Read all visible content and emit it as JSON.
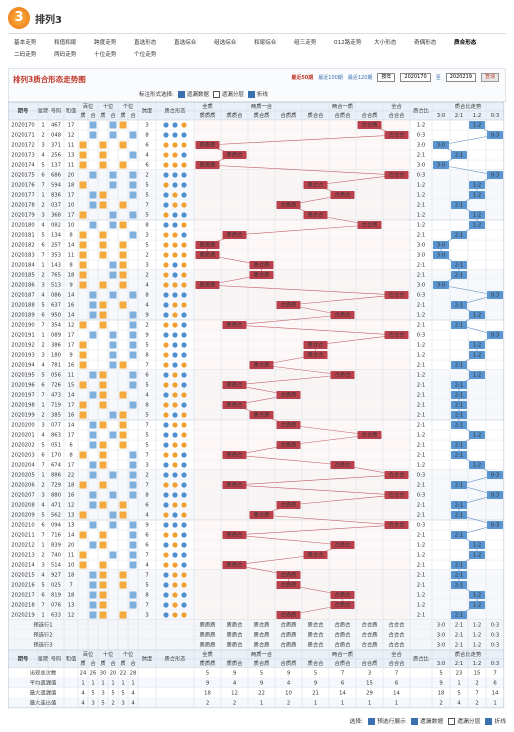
{
  "header": {
    "logo": "3",
    "title": "排列3"
  },
  "nav": {
    "items": [
      "基本走势",
      "和值和尾",
      "跨度走势",
      "直选形态",
      "直选综合",
      "组选综合",
      "和尾综合",
      "组三走势",
      "012路走势",
      "大小形态",
      "奇偶形态",
      "质合形态",
      "二码走势",
      "两码走势",
      "十位走势",
      "个位走势"
    ],
    "active": 11
  },
  "toolbar": {
    "title": "排列3质合形态走势图",
    "links": [
      "最近50期",
      "最近100期",
      "最近120期"
    ],
    "active_link": 0,
    "select": "按年",
    "start": "2020170",
    "to": "至",
    "end": "2020219",
    "button": "查询"
  },
  "options": {
    "label": "标注形式选择:",
    "checkboxes": [
      {
        "label": "遗漏数据",
        "checked": true
      },
      {
        "label": "遗漏分层",
        "checked": false
      },
      {
        "label": "折线",
        "checked": true
      }
    ]
  },
  "table": {
    "headers": {
      "issue": "期号",
      "weekday": "星期",
      "number": "号码",
      "sum": "和值",
      "span": "跨度",
      "form": "质合形态",
      "ratio": "质合比",
      "trend": "质合比走势"
    },
    "positions": [
      "百位",
      "十位",
      "个位"
    ],
    "digit_sub": [
      "质",
      "合"
    ],
    "pattern_groups": [
      {
        "name": "全质",
        "items": [
          "质质质"
        ]
      },
      {
        "name": "两质一合",
        "items": [
          "质质合",
          "质合质",
          "合质质"
        ]
      },
      {
        "name": "两合一质",
        "items": [
          "质合合",
          "合质合",
          "合合质"
        ]
      },
      {
        "name": "全合",
        "items": [
          "合合合"
        ]
      }
    ],
    "ratio_cols": [
      "3:0",
      "2:1",
      "1:2",
      "0:3"
    ],
    "rows": [
      [
        2020170,
        1,
        "467",
        17,
        3,
        "合合质",
        "1:2"
      ],
      [
        2020171,
        2,
        "048",
        12,
        8,
        "合合合",
        "0:3"
      ],
      [
        2020172,
        3,
        "371",
        11,
        6,
        "质质质",
        "3:0"
      ],
      [
        2020173,
        4,
        "256",
        13,
        4,
        "质质合",
        "2:1"
      ],
      [
        2020174,
        5,
        "137",
        11,
        6,
        "质质质",
        "3:0"
      ],
      [
        2020175,
        6,
        "686",
        20,
        2,
        "合合合",
        "0:3"
      ],
      [
        2020176,
        7,
        "594",
        18,
        5,
        "质合合",
        "1:2"
      ],
      [
        2020177,
        1,
        "836",
        17,
        5,
        "合质合",
        "1:2"
      ],
      [
        2020178,
        2,
        "037",
        10,
        7,
        "合质质",
        "2:1"
      ],
      [
        2020179,
        3,
        "368",
        17,
        5,
        "质合合",
        "1:2"
      ],
      [
        2020180,
        4,
        "082",
        10,
        8,
        "合合质",
        "1:2"
      ],
      [
        2020181,
        5,
        "134",
        8,
        3,
        "质质合",
        "2:1"
      ],
      [
        2020182,
        6,
        "257",
        14,
        5,
        "质质质",
        "3:0"
      ],
      [
        2020183,
        7,
        "353",
        11,
        2,
        "质质质",
        "3:0"
      ],
      [
        2020184,
        1,
        "143",
        8,
        3,
        "质合质",
        "2:1"
      ],
      [
        2020185,
        2,
        "765",
        18,
        2,
        "质合质",
        "2:1"
      ],
      [
        2020186,
        3,
        "513",
        9,
        4,
        "质质质",
        "3:0"
      ],
      [
        2020187,
        4,
        "086",
        14,
        8,
        "合合合",
        "0:3"
      ],
      [
        2020188,
        5,
        "637",
        16,
        4,
        "合质质",
        "2:1"
      ],
      [
        2020189,
        6,
        "950",
        14,
        9,
        "合质合",
        "1:2"
      ],
      [
        2020190,
        7,
        "354",
        12,
        2,
        "质质合",
        "2:1"
      ],
      [
        2020191,
        1,
        "089",
        17,
        9,
        "合合合",
        "0:3"
      ],
      [
        2020192,
        2,
        "386",
        17,
        5,
        "质合合",
        "1:2"
      ],
      [
        2020193,
        3,
        "180",
        9,
        8,
        "质合合",
        "1:2"
      ],
      [
        2020194,
        4,
        "781",
        16,
        7,
        "质合质",
        "2:1"
      ],
      [
        2020195,
        5,
        "056",
        11,
        6,
        "合质合",
        "1:2"
      ],
      [
        2020196,
        6,
        "726",
        15,
        5,
        "质质合",
        "2:1"
      ],
      [
        2020197,
        7,
        "473",
        14,
        4,
        "合质质",
        "2:1"
      ],
      [
        2020198,
        1,
        "719",
        17,
        8,
        "质质合",
        "2:1"
      ],
      [
        2020199,
        2,
        "385",
        16,
        5,
        "质合质",
        "2:1"
      ],
      [
        2020200,
        3,
        "077",
        14,
        7,
        "合质质",
        "2:1"
      ],
      [
        2020201,
        4,
        "863",
        17,
        5,
        "合合质",
        "1:2"
      ],
      [
        2020202,
        5,
        "051",
        6,
        5,
        "合质质",
        "2:1"
      ],
      [
        2020203,
        6,
        "170",
        8,
        7,
        "质质合",
        "2:1"
      ],
      [
        2020204,
        7,
        "674",
        17,
        3,
        "合质合",
        "1:2"
      ],
      [
        2020205,
        1,
        "886",
        22,
        2,
        "合合合",
        "0:3"
      ],
      [
        2020206,
        2,
        "729",
        18,
        7,
        "质质合",
        "2:1"
      ],
      [
        2020207,
        3,
        "880",
        16,
        8,
        "合合合",
        "0:3"
      ],
      [
        2020208,
        4,
        "471",
        12,
        6,
        "合质质",
        "2:1"
      ],
      [
        2020209,
        5,
        "562",
        13,
        4,
        "质合质",
        "2:1"
      ],
      [
        2020210,
        6,
        "094",
        13,
        9,
        "合合合",
        "0:3"
      ],
      [
        2020211,
        7,
        "716",
        14,
        6,
        "质质合",
        "2:1"
      ],
      [
        2020212,
        1,
        "839",
        20,
        6,
        "合质合",
        "1:2"
      ],
      [
        2020213,
        2,
        "740",
        11,
        7,
        "质合合",
        "1:2"
      ],
      [
        2020214,
        3,
        "514",
        10,
        4,
        "质质合",
        "2:1"
      ],
      [
        2020215,
        4,
        "927",
        18,
        7,
        "合质质",
        "2:1"
      ],
      [
        2020216,
        5,
        "025",
        7,
        5,
        "合质质",
        "2:1"
      ],
      [
        2020217,
        6,
        "819",
        18,
        8,
        "合质合",
        "1:2"
      ],
      [
        2020218,
        7,
        "076",
        13,
        7,
        "合质合",
        "1:2"
      ],
      [
        2020219,
        1,
        "633",
        12,
        3,
        "合质质",
        "2:1"
      ]
    ],
    "preselect": [
      "预选行1",
      "预选行2",
      "预选行3"
    ],
    "stats": [
      {
        "label": "出现总次数",
        "digits": [
          24,
          26,
          30,
          20,
          22,
          28
        ],
        "patterns": [
          5,
          9,
          5,
          9,
          5,
          7,
          3,
          7
        ],
        "trend": [
          5,
          23,
          15,
          7
        ]
      },
      {
        "label": "平均遗漏值",
        "digits": [
          1,
          1,
          1,
          1,
          1,
          1
        ],
        "patterns": [
          9,
          4,
          9,
          4,
          9,
          6,
          15,
          6
        ],
        "trend": [
          9,
          1,
          2,
          6
        ]
      },
      {
        "label": "最大遗漏值",
        "digits": [
          4,
          5,
          3,
          5,
          5,
          4
        ],
        "patterns": [
          18,
          12,
          22,
          10,
          21,
          14,
          29,
          14
        ],
        "trend": [
          18,
          5,
          7,
          14
        ]
      },
      {
        "label": "最大连出值",
        "digits": [
          4,
          3,
          5,
          2,
          3,
          4
        ],
        "patterns": [
          2,
          2,
          1,
          2,
          1,
          1,
          1,
          1
        ],
        "trend": [
          2,
          4,
          2,
          1
        ]
      }
    ]
  },
  "footer": {
    "label": "选择:",
    "checkboxes": [
      {
        "label": "预选行展示",
        "checked": true
      },
      {
        "label": "遗漏数据",
        "checked": true
      },
      {
        "label": "遗漏分层",
        "checked": false
      },
      {
        "label": "折线",
        "checked": true
      }
    ]
  }
}
